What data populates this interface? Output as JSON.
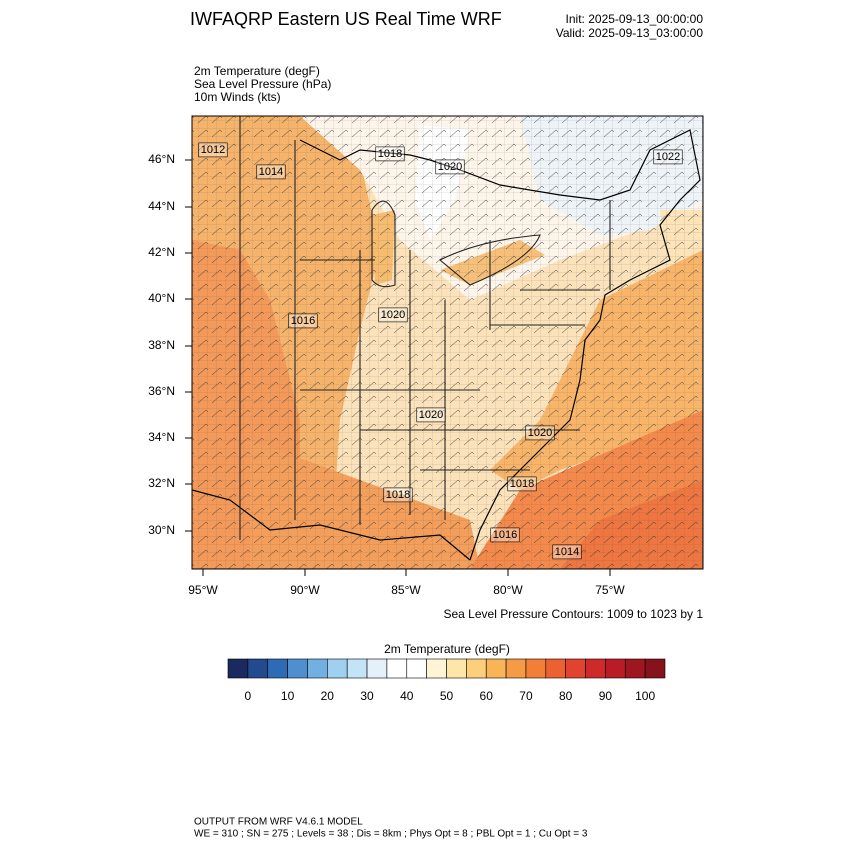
{
  "header": {
    "title": "IWFAQRP Eastern US Real Time WRF",
    "init": "Init: 2025-09-13_00:00:00",
    "valid": "Valid: 2025-09-13_03:00:00",
    "fields": [
      "2m Temperature   (degF)",
      "Sea Level Pressure   (hPa)",
      "10m Winds   (kts)"
    ]
  },
  "map": {
    "contour_labels": [
      1012,
      1014,
      1018,
      1020,
      1022,
      1016,
      1020,
      1020,
      1020,
      1018,
      1018,
      1016,
      1014
    ],
    "lat_labels": [
      "46°N",
      "44°N",
      "42°N",
      "40°N",
      "38°N",
      "36°N",
      "34°N",
      "32°N",
      "30°N"
    ],
    "lon_labels": [
      "95°W",
      "90°W",
      "85°W",
      "80°W",
      "75°W"
    ],
    "contour_info": "Sea Level Pressure Contours: 1009 to 1023 by 1"
  },
  "colorbar": {
    "title": "2m Temperature  (degF)",
    "ticks": [
      0,
      10,
      20,
      30,
      40,
      50,
      60,
      70,
      80,
      90,
      100
    ],
    "colors": [
      "#1a2a5e",
      "#224b8f",
      "#2e6bb5",
      "#4f8fcf",
      "#73b0e2",
      "#9fd0f0",
      "#c3e3f6",
      "#e4f1fa",
      "#ffffff",
      "#ffffff",
      "#fff4d6",
      "#fde6a8",
      "#fbcf7c",
      "#f9b456",
      "#f59a45",
      "#f27e38",
      "#ec6032",
      "#e2432e",
      "#cf2a2a",
      "#b91c24",
      "#9e1620",
      "#86121c"
    ]
  },
  "footer": [
    "OUTPUT FROM WRF V4.6.1 MODEL",
    "WE = 310 ; SN = 275 ; Levels = 38 ; Dis = 8km ; Phys Opt = 8 ; PBL Opt = 1 ; Cu Opt = 3"
  ]
}
